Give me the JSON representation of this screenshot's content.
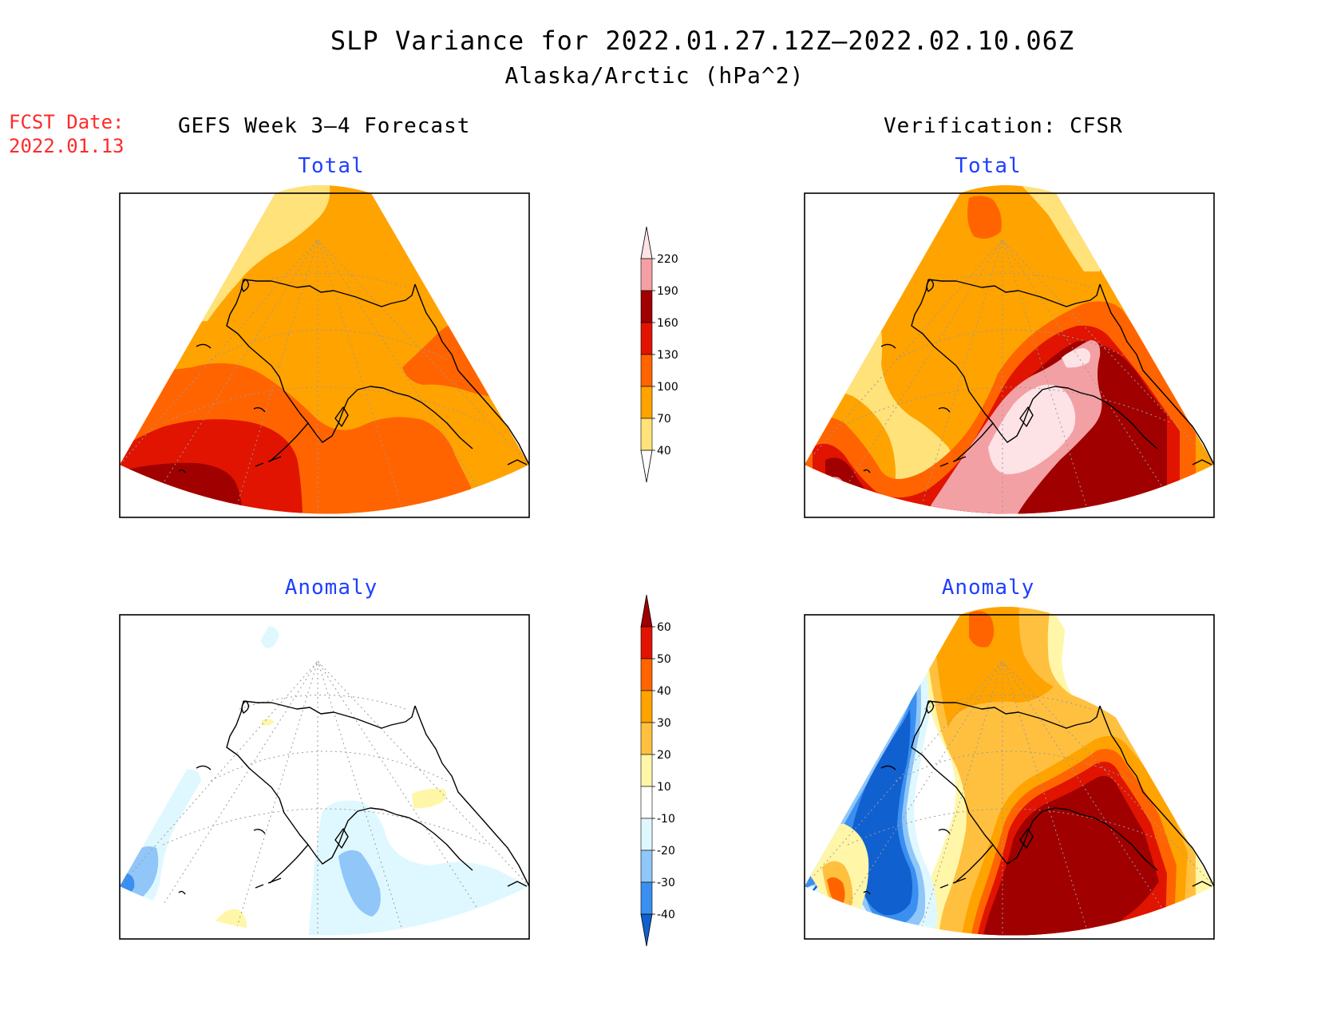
{
  "title": {
    "line1": "SLP Variance for 2022.01.27.12Z–2022.02.10.06Z",
    "line2": "Alaska/Arctic (hPa^2)"
  },
  "forecast_date": {
    "label": "FCST Date:",
    "value": "2022.01.13"
  },
  "columns": {
    "left": "GEFS Week 3–4 Forecast",
    "right": "Verification: CFSR"
  },
  "panels": [
    {
      "id": "gefs-total",
      "title": "Total"
    },
    {
      "id": "cfsr-total",
      "title": "Total"
    },
    {
      "id": "gefs-anomaly",
      "title": "Anomaly"
    },
    {
      "id": "cfsr-anomaly",
      "title": "Anomaly"
    }
  ],
  "colorbars": {
    "total": {
      "labels": [
        "40",
        "70",
        "100",
        "130",
        "160",
        "190",
        "220"
      ],
      "colors": [
        "#ffffff",
        "#ffe27a",
        "#ffa300",
        "#ff6400",
        "#e01400",
        "#a00000",
        "#f3a0a4",
        "#fde3e5"
      ]
    },
    "anomaly": {
      "labels": [
        "-40",
        "-30",
        "-20",
        "-10",
        "10",
        "20",
        "30",
        "40",
        "50",
        "60"
      ],
      "colors": [
        "#1060d0",
        "#3a8ff0",
        "#90c6f8",
        "#dff8ff",
        "#ffffff",
        "#fff6a8",
        "#ffc040",
        "#ffa300",
        "#ff6400",
        "#e01400",
        "#a00000"
      ]
    }
  },
  "field_colors": {
    "yellow": "#ffe27a",
    "orange": "#ffa300",
    "dark_orange": "#ff6400",
    "red": "#e01400",
    "dark_red": "#a00000",
    "pink": "#f3a0a4",
    "light_pink": "#fde3e5",
    "light_yellow": "#fff6a8",
    "light_orange": "#ffc040",
    "pale_blue": "#dff8ff",
    "light_blue": "#90c6f8",
    "medium_blue": "#3a8ff0",
    "dark_blue": "#1060d0"
  }
}
